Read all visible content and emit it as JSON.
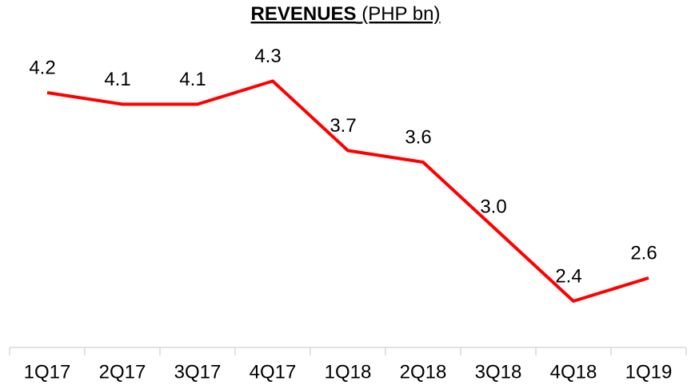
{
  "chart_data": {
    "type": "line",
    "title": "REVENUES",
    "title_unit": "(PHP bn)",
    "categories": [
      "1Q17",
      "2Q17",
      "3Q17",
      "4Q17",
      "1Q18",
      "2Q18",
      "3Q18",
      "4Q18",
      "1Q19"
    ],
    "series": [
      {
        "name": "Revenues",
        "color": "#ff0000",
        "values": [
          4.2,
          4.1,
          4.1,
          4.3,
          3.7,
          3.6,
          3.0,
          2.4,
          2.6
        ],
        "value_labels": [
          "4.2",
          "4.1",
          "4.1",
          "4.3",
          "3.7",
          "3.6",
          "3.0",
          "2.4",
          "2.6"
        ]
      }
    ],
    "ylim": [
      2,
      5
    ],
    "grid": false
  }
}
